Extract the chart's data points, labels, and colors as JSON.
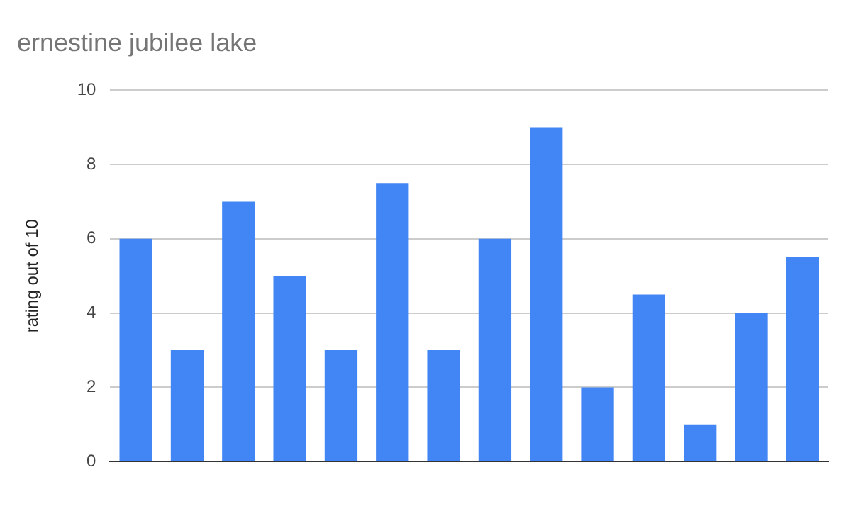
{
  "chart_data": {
    "type": "bar",
    "title": "ernestine jubilee lake",
    "ylabel": "rating out of 10",
    "categories": [
      null,
      null,
      null,
      null,
      null,
      null,
      null,
      null,
      null,
      null,
      null,
      null,
      null,
      null
    ],
    "values": [
      6,
      3,
      7,
      5,
      3,
      7.5,
      3,
      6,
      9,
      2,
      4.5,
      1,
      4,
      5.5
    ],
    "color": "#4285f4",
    "ylim": [
      0,
      10
    ],
    "yticks": [
      0,
      2,
      4,
      6,
      8,
      10
    ],
    "grid": "y"
  }
}
